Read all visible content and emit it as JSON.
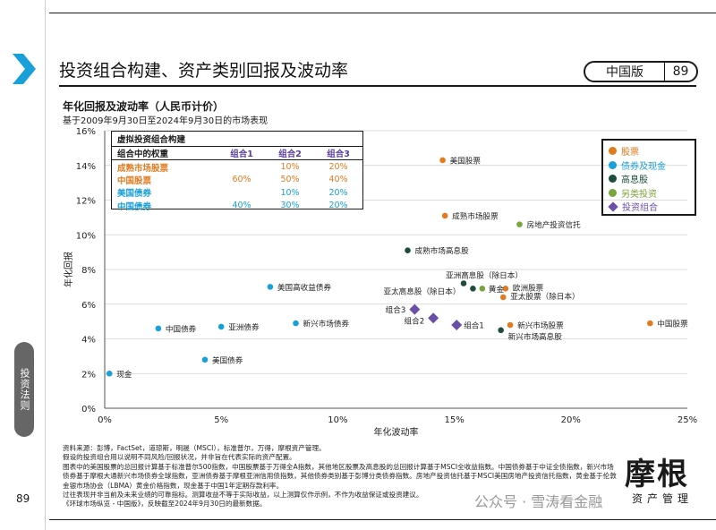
{
  "page": {
    "title": "投资组合构建、资产类别回报及波动率",
    "badge_label": "中国版",
    "page_number": "89",
    "side_tab": "投资法则",
    "side_page_number": "89",
    "subtitle": "年化回报及波动率（人民币计价）",
    "subnote": "基于2009年9月30日至2024年9月30日的市场表现",
    "footnotes": [
      "资料来源：彭博，FactSet，道琼斯，明晟（MSCI），标准普尔，万得，摩根资产管理。",
      "假设的投资组合用以说明不同风险/回报状况，并非旨在代表实际的资产配置。",
      "图表中的美国股票的总回报计算基于标准普尔500指数，中国股票基于万得全A指数，其他地区股票及高息股的总回报计算基于MSCI全收益指数。中国债券基于中证全债指数，新兴市场",
      "债券基于摩根大通新兴市场债券全球指数，亚洲债券基于摩根亚洲信用债指数，其他债券类别基于彭博分类债券指数。房地产投资信托基于MSCI美国房地产投资信托指数，黄金基于伦敦",
      "金银市场协会（LBMA）黄金价格指数，现金基于中国1年定期存款利率。",
      "过往表现并非当前及未来业绩的可靠指标。测算收益不等于实际收益，以上测算仅作示例，不作为收益保证或投资建议。",
      "《环球市场纵览 - 中国版》，反映截至2024年9月30日的最新数据。"
    ],
    "logo_main": "摩根",
    "logo_sub": "资产管理",
    "watermark": "公众号 · 雪涛看金融"
  },
  "portfolio_table": {
    "title": "虚拟投资组合构建",
    "header": [
      "组合中的权重",
      "组合1",
      "组合2",
      "组合3"
    ],
    "rows": [
      {
        "label": "成熟市场股票",
        "color": "#e07b20",
        "values": [
          "",
          "10%",
          "20%"
        ]
      },
      {
        "label": "中国股票",
        "color": "#e07b20",
        "values": [
          "60%",
          "50%",
          "40%"
        ]
      },
      {
        "label": "美国债券",
        "color": "#1aa0d8",
        "values": [
          "",
          "10%",
          "20%"
        ]
      },
      {
        "label": "中国债券",
        "color": "#1aa0d8",
        "values": [
          "40%",
          "30%",
          "20%"
        ]
      }
    ]
  },
  "legend": [
    {
      "label": "股票",
      "color": "#e07b20",
      "shape": "dot"
    },
    {
      "label": "债券及现金",
      "color": "#1aa0d8",
      "shape": "dot"
    },
    {
      "label": "高息股",
      "color": "#1e4d3a",
      "shape": "dot"
    },
    {
      "label": "另类投资",
      "color": "#7aa43c",
      "shape": "dot"
    },
    {
      "label": "投资组合",
      "color": "#6a4fa8",
      "shape": "diamond"
    }
  ],
  "chart_data": {
    "type": "scatter",
    "xlabel": "年化波动率",
    "ylabel": "年化回报",
    "xlim": [
      0,
      25
    ],
    "ylim": [
      0,
      16
    ],
    "x_ticks": [
      "0%",
      "5%",
      "10%",
      "15%",
      "20%",
      "25%"
    ],
    "y_ticks": [
      "0%",
      "2%",
      "4%",
      "6%",
      "8%",
      "10%",
      "12%",
      "14%",
      "16%"
    ],
    "grid": true,
    "legend_position": "top-right",
    "series": [
      {
        "name": "股票",
        "color": "#e07b20",
        "shape": "dot",
        "points": [
          {
            "label": "美国股票",
            "x": 14.5,
            "y": 14.3
          },
          {
            "label": "成熟市场股票",
            "x": 14.6,
            "y": 11.1
          },
          {
            "label": "欧洲股票",
            "x": 17.2,
            "y": 6.9
          },
          {
            "label": "亚太股票（除日本）",
            "x": 17.1,
            "y": 6.4
          },
          {
            "label": "新兴市场股票",
            "x": 17.4,
            "y": 4.8
          },
          {
            "label": "中国股票",
            "x": 23.4,
            "y": 4.9
          }
        ]
      },
      {
        "name": "债券及现金",
        "color": "#1aa0d8",
        "shape": "dot",
        "points": [
          {
            "label": "现金",
            "x": 0.2,
            "y": 2.0
          },
          {
            "label": "美国债券",
            "x": 4.3,
            "y": 2.8
          },
          {
            "label": "中国债券",
            "x": 2.3,
            "y": 4.6
          },
          {
            "label": "亚洲债券",
            "x": 5.0,
            "y": 4.7
          },
          {
            "label": "新兴市场债券",
            "x": 8.2,
            "y": 4.9
          },
          {
            "label": "美国高收益债券",
            "x": 7.1,
            "y": 7.0
          }
        ]
      },
      {
        "name": "高息股",
        "color": "#1e4d3a",
        "shape": "dot",
        "points": [
          {
            "label": "成熟市场高息股",
            "x": 13.0,
            "y": 9.1
          },
          {
            "label": "亚洲高息股（除日本）",
            "x": 15.4,
            "y": 7.2
          },
          {
            "label": "亚太高息股（除日本）",
            "x": 15.8,
            "y": 6.9
          },
          {
            "label": "新兴市场高息股",
            "x": 17.0,
            "y": 4.5
          }
        ]
      },
      {
        "name": "另类投资",
        "color": "#7aa43c",
        "shape": "dot",
        "points": [
          {
            "label": "房地产投资信托",
            "x": 17.8,
            "y": 10.6
          },
          {
            "label": "黄金",
            "x": 16.2,
            "y": 6.9
          }
        ]
      },
      {
        "name": "投资组合",
        "color": "#6a4fa8",
        "shape": "diamond",
        "points": [
          {
            "label": "组合3",
            "x": 13.3,
            "y": 5.7
          },
          {
            "label": "组合2",
            "x": 14.1,
            "y": 5.2
          },
          {
            "label": "组合1",
            "x": 15.1,
            "y": 4.8
          }
        ]
      }
    ]
  }
}
